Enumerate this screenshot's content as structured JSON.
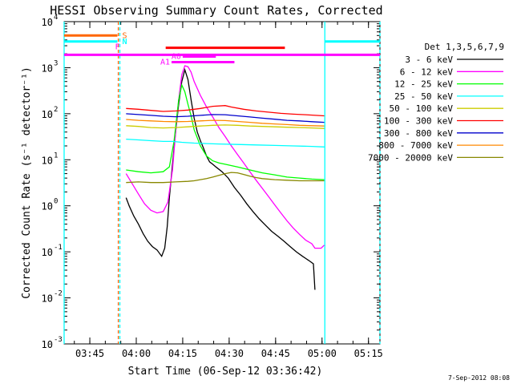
{
  "chart_data": {
    "type": "line",
    "title": "HESSI Observing Summary Count Rates, Corrected",
    "xlabel": "Start Time (06-Sep-12 03:36:42)",
    "ylabel": "Corrected Count Rate (s⁻¹ detector⁻¹)",
    "footer_date": "7-Sep-2012 08:08",
    "x_range_minutes": [
      0,
      102
    ],
    "x_ticks": [
      {
        "label": "03:45",
        "t": 8.3
      },
      {
        "label": "04:00",
        "t": 23.3
      },
      {
        "label": "04:15",
        "t": 38.3
      },
      {
        "label": "04:30",
        "t": 53.3
      },
      {
        "label": "04:45",
        "t": 68.3
      },
      {
        "label": "05:00",
        "t": 83.3
      },
      {
        "label": "05:15",
        "t": 98.3
      }
    ],
    "y_scale": "log",
    "ylim": [
      0.001,
      10000
    ],
    "y_ticks": [
      {
        "label": "10",
        "exp": "-3",
        "v": 0.001
      },
      {
        "label": "10",
        "exp": "-2",
        "v": 0.01
      },
      {
        "label": "10",
        "exp": "-1",
        "v": 0.1
      },
      {
        "label": "10",
        "exp": "0",
        "v": 1
      },
      {
        "label": "10",
        "exp": "1",
        "v": 10
      },
      {
        "label": "10",
        "exp": "2",
        "v": 100
      },
      {
        "label": "10",
        "exp": "3",
        "v": 1000
      },
      {
        "label": "10",
        "exp": "4",
        "v": 10000
      }
    ],
    "legend_title": "Det 1,3,5,6,7,9",
    "legend_placement": "right",
    "series": [
      {
        "name": "3 - 6 keV",
        "color": "#000000",
        "points": [
          [
            20,
            1.5
          ],
          [
            21,
            1.0
          ],
          [
            22.5,
            0.6
          ],
          [
            24,
            0.4
          ],
          [
            25.5,
            0.25
          ],
          [
            27,
            0.17
          ],
          [
            28.5,
            0.13
          ],
          [
            30,
            0.11
          ],
          [
            31.5,
            0.08
          ],
          [
            32.5,
            0.12
          ],
          [
            33.3,
            0.35
          ],
          [
            34,
            1.5
          ],
          [
            35,
            8
          ],
          [
            36,
            40
          ],
          [
            37,
            160
          ],
          [
            38,
            500
          ],
          [
            39,
            900
          ],
          [
            40,
            550
          ],
          [
            41,
            200
          ],
          [
            42,
            80
          ],
          [
            43,
            40
          ],
          [
            44,
            26
          ],
          [
            45,
            18
          ],
          [
            46,
            12
          ],
          [
            47,
            9
          ],
          [
            48,
            8
          ],
          [
            49,
            7
          ],
          [
            51,
            5.5
          ],
          [
            53,
            4
          ],
          [
            55,
            2.5
          ],
          [
            57,
            1.7
          ],
          [
            59,
            1.1
          ],
          [
            61,
            0.75
          ],
          [
            63,
            0.52
          ],
          [
            65,
            0.38
          ],
          [
            67,
            0.28
          ],
          [
            69,
            0.22
          ],
          [
            71,
            0.17
          ],
          [
            73,
            0.13
          ],
          [
            75,
            0.1
          ],
          [
            77,
            0.08
          ],
          [
            79,
            0.065
          ],
          [
            80.5,
            0.055
          ],
          [
            81,
            0.015
          ]
        ]
      },
      {
        "name": "6 - 12 keV",
        "color": "#ff00ff",
        "points": [
          [
            20,
            5
          ],
          [
            22,
            3
          ],
          [
            24,
            1.8
          ],
          [
            26,
            1.1
          ],
          [
            28,
            0.8
          ],
          [
            30,
            0.7
          ],
          [
            32,
            0.75
          ],
          [
            33.5,
            1.2
          ],
          [
            35,
            6
          ],
          [
            36,
            40
          ],
          [
            37,
            200
          ],
          [
            38,
            700
          ],
          [
            39,
            1100
          ],
          [
            40,
            1050
          ],
          [
            41,
            800
          ],
          [
            42,
            500
          ],
          [
            44,
            250
          ],
          [
            46,
            140
          ],
          [
            48,
            85
          ],
          [
            50,
            50
          ],
          [
            52,
            32
          ],
          [
            54,
            20
          ],
          [
            56,
            13
          ],
          [
            58,
            8.5
          ],
          [
            60,
            5.5
          ],
          [
            62,
            3.6
          ],
          [
            64,
            2.4
          ],
          [
            66,
            1.6
          ],
          [
            68,
            1.05
          ],
          [
            70,
            0.7
          ],
          [
            72,
            0.47
          ],
          [
            74,
            0.33
          ],
          [
            76,
            0.24
          ],
          [
            78,
            0.18
          ],
          [
            80,
            0.15
          ],
          [
            81,
            0.12
          ],
          [
            83,
            0.12
          ],
          [
            84,
            0.14
          ]
        ]
      },
      {
        "name": "12 - 25 keV",
        "color": "#00ff00",
        "points": [
          [
            20,
            6
          ],
          [
            24,
            5.5
          ],
          [
            28,
            5.2
          ],
          [
            32,
            5.5
          ],
          [
            34,
            7
          ],
          [
            35.5,
            25
          ],
          [
            37,
            200
          ],
          [
            38,
            420
          ],
          [
            39,
            300
          ],
          [
            40,
            160
          ],
          [
            41,
            90
          ],
          [
            42,
            45
          ],
          [
            44,
            20
          ],
          [
            46,
            12
          ],
          [
            48,
            9.5
          ],
          [
            50,
            8.5
          ],
          [
            52,
            8
          ],
          [
            56,
            7
          ],
          [
            60,
            6
          ],
          [
            64,
            5.2
          ],
          [
            68,
            4.7
          ],
          [
            72,
            4.2
          ],
          [
            76,
            4
          ],
          [
            80,
            3.8
          ],
          [
            84,
            3.7
          ]
        ]
      },
      {
        "name": "25 - 50 keV",
        "color": "#00ffff",
        "points": [
          [
            20,
            28
          ],
          [
            24,
            27
          ],
          [
            28,
            26
          ],
          [
            32,
            25
          ],
          [
            35,
            25
          ],
          [
            38,
            24
          ],
          [
            42,
            23
          ],
          [
            46,
            22.5
          ],
          [
            50,
            22
          ],
          [
            56,
            21.5
          ],
          [
            62,
            21
          ],
          [
            68,
            20.5
          ],
          [
            74,
            20
          ],
          [
            80,
            19.5
          ],
          [
            84,
            19
          ]
        ]
      },
      {
        "name": "50 - 100 keV",
        "color": "#cccc00",
        "points": [
          [
            20,
            55
          ],
          [
            24,
            53
          ],
          [
            28,
            50
          ],
          [
            32,
            49
          ],
          [
            36,
            50
          ],
          [
            40,
            52
          ],
          [
            44,
            54
          ],
          [
            48,
            56
          ],
          [
            52,
            57
          ],
          [
            56,
            56
          ],
          [
            60,
            54
          ],
          [
            64,
            53
          ],
          [
            68,
            52
          ],
          [
            72,
            51
          ],
          [
            76,
            50
          ],
          [
            80,
            49
          ],
          [
            84,
            48
          ]
        ]
      },
      {
        "name": "100 - 300 keV",
        "color": "#ff0000",
        "points": [
          [
            20,
            130
          ],
          [
            24,
            125
          ],
          [
            28,
            118
          ],
          [
            32,
            112
          ],
          [
            36,
            115
          ],
          [
            40,
            120
          ],
          [
            44,
            130
          ],
          [
            48,
            145
          ],
          [
            52,
            150
          ],
          [
            54,
            140
          ],
          [
            58,
            125
          ],
          [
            62,
            115
          ],
          [
            66,
            108
          ],
          [
            70,
            102
          ],
          [
            74,
            98
          ],
          [
            78,
            95
          ],
          [
            84,
            90
          ]
        ]
      },
      {
        "name": "300 - 800 keV",
        "color": "#0000cc",
        "points": [
          [
            20,
            100
          ],
          [
            24,
            96
          ],
          [
            28,
            92
          ],
          [
            32,
            88
          ],
          [
            36,
            86
          ],
          [
            40,
            88
          ],
          [
            44,
            92
          ],
          [
            48,
            96
          ],
          [
            52,
            95
          ],
          [
            56,
            90
          ],
          [
            60,
            85
          ],
          [
            64,
            80
          ],
          [
            68,
            76
          ],
          [
            72,
            72
          ],
          [
            76,
            70
          ],
          [
            80,
            67
          ],
          [
            84,
            65
          ]
        ]
      },
      {
        "name": "800 - 7000 keV",
        "color": "#ff8800",
        "points": [
          [
            20,
            75
          ],
          [
            24,
            72
          ],
          [
            28,
            70
          ],
          [
            32,
            68
          ],
          [
            36,
            67
          ],
          [
            40,
            68
          ],
          [
            44,
            70
          ],
          [
            48,
            72
          ],
          [
            52,
            71
          ],
          [
            56,
            68
          ],
          [
            60,
            65
          ],
          [
            64,
            62
          ],
          [
            68,
            60
          ],
          [
            72,
            58
          ],
          [
            76,
            56
          ],
          [
            80,
            55
          ],
          [
            84,
            54
          ]
        ]
      },
      {
        "name": "7000 - 20000 keV",
        "color": "#888800",
        "points": [
          [
            20,
            3.2
          ],
          [
            24,
            3.3
          ],
          [
            28,
            3.2
          ],
          [
            32,
            3.2
          ],
          [
            36,
            3.3
          ],
          [
            40,
            3.4
          ],
          [
            42,
            3.5
          ],
          [
            44,
            3.7
          ],
          [
            46,
            3.9
          ],
          [
            48,
            4.2
          ],
          [
            50,
            4.6
          ],
          [
            52,
            5
          ],
          [
            54,
            5.3
          ],
          [
            56,
            5.2
          ],
          [
            58,
            4.8
          ],
          [
            60,
            4.4
          ],
          [
            62,
            4.1
          ],
          [
            64,
            3.9
          ],
          [
            68,
            3.7
          ],
          [
            72,
            3.6
          ],
          [
            76,
            3.5
          ],
          [
            80,
            3.5
          ],
          [
            84,
            3.5
          ]
        ]
      }
    ],
    "flag_bars": [
      {
        "label": "S",
        "color": "#ff6600",
        "level": 5000,
        "t0": 0,
        "t1": 17.2
      },
      {
        "label": "N",
        "color": "#00ffff",
        "level": 3700,
        "t0": 0,
        "t1": 17.2
      },
      {
        "label": "N",
        "color": "#00ffff",
        "level": 3700,
        "t0": 84.2,
        "t1": 102
      },
      {
        "label": "F",
        "color": "#ff00ff",
        "level": 1900,
        "t0": 0,
        "t1": 102
      },
      {
        "label": "",
        "color": "#ff0000",
        "level": 2700,
        "t0": 32.8,
        "t1": 71.3
      },
      {
        "label": "A0",
        "color": "#ff00ff",
        "level": 1750,
        "t0": 38.3,
        "t1": 49
      },
      {
        "label": "A1",
        "color": "#ff00ff",
        "level": 1320,
        "t0": 34.7,
        "t1": 55
      }
    ],
    "vertical_lines": [
      {
        "t": 17.5,
        "color": "#ff6600",
        "dashed": true
      },
      {
        "t": 18.0,
        "color": "#00ffff",
        "dashed": true
      },
      {
        "t": 84.2,
        "color": "#00ffff",
        "dashed": false
      },
      {
        "t": 102,
        "color": "#00ffff",
        "dashed": true
      },
      {
        "t": 0,
        "color": "#00ffff",
        "dashed": false
      }
    ]
  }
}
